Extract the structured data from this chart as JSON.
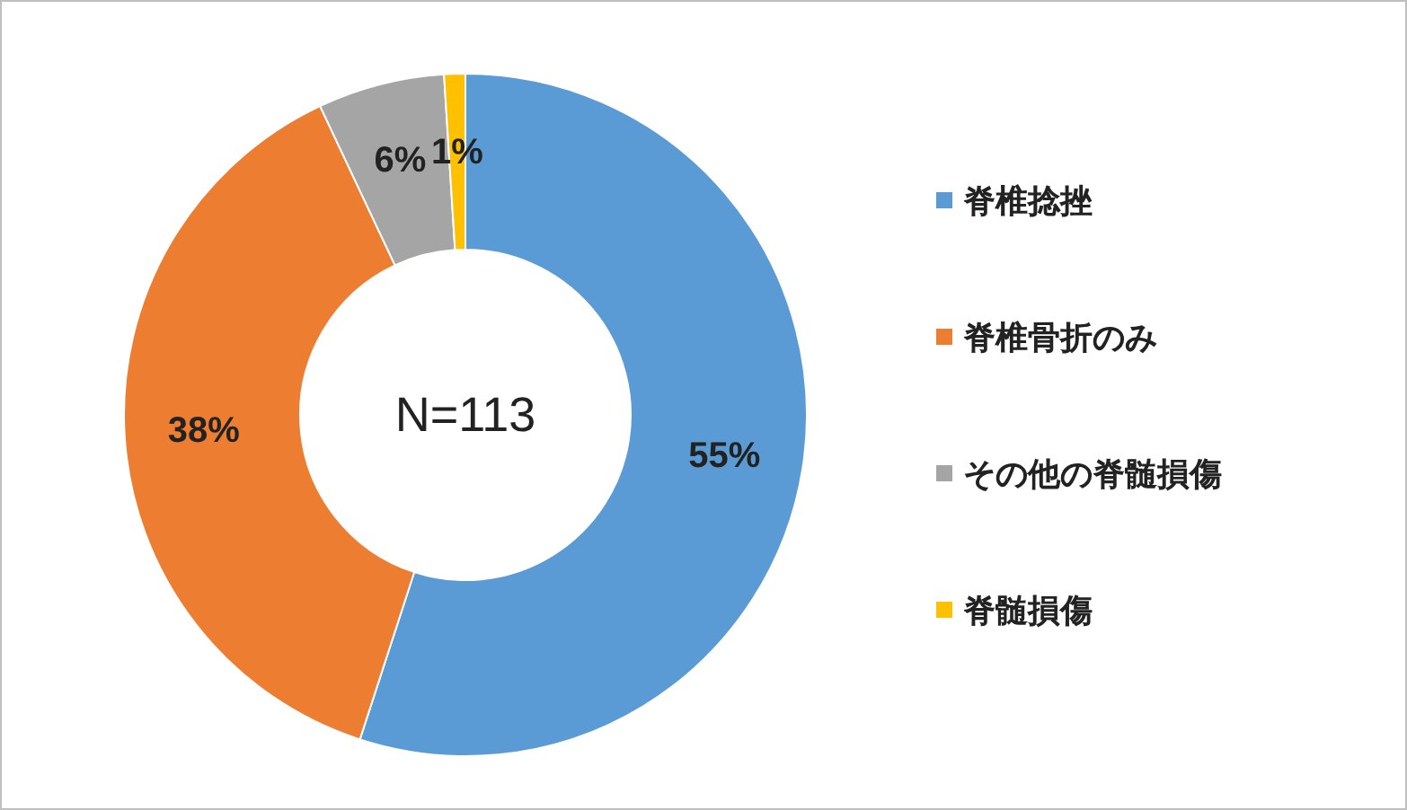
{
  "chart_data": {
    "type": "donut",
    "categories": [
      "脊椎捻挫",
      "脊椎骨折のみ",
      "その他の脊髄損傷",
      "脊髄損傷"
    ],
    "values": [
      55,
      38,
      6,
      1
    ],
    "colors": [
      "#5b9bd5",
      "#ed7d31",
      "#a5a5a5",
      "#ffc000"
    ],
    "value_labels": [
      "55%",
      "38%",
      "6%",
      "1%"
    ],
    "annotations": [
      "N=113"
    ],
    "legend": "right"
  }
}
